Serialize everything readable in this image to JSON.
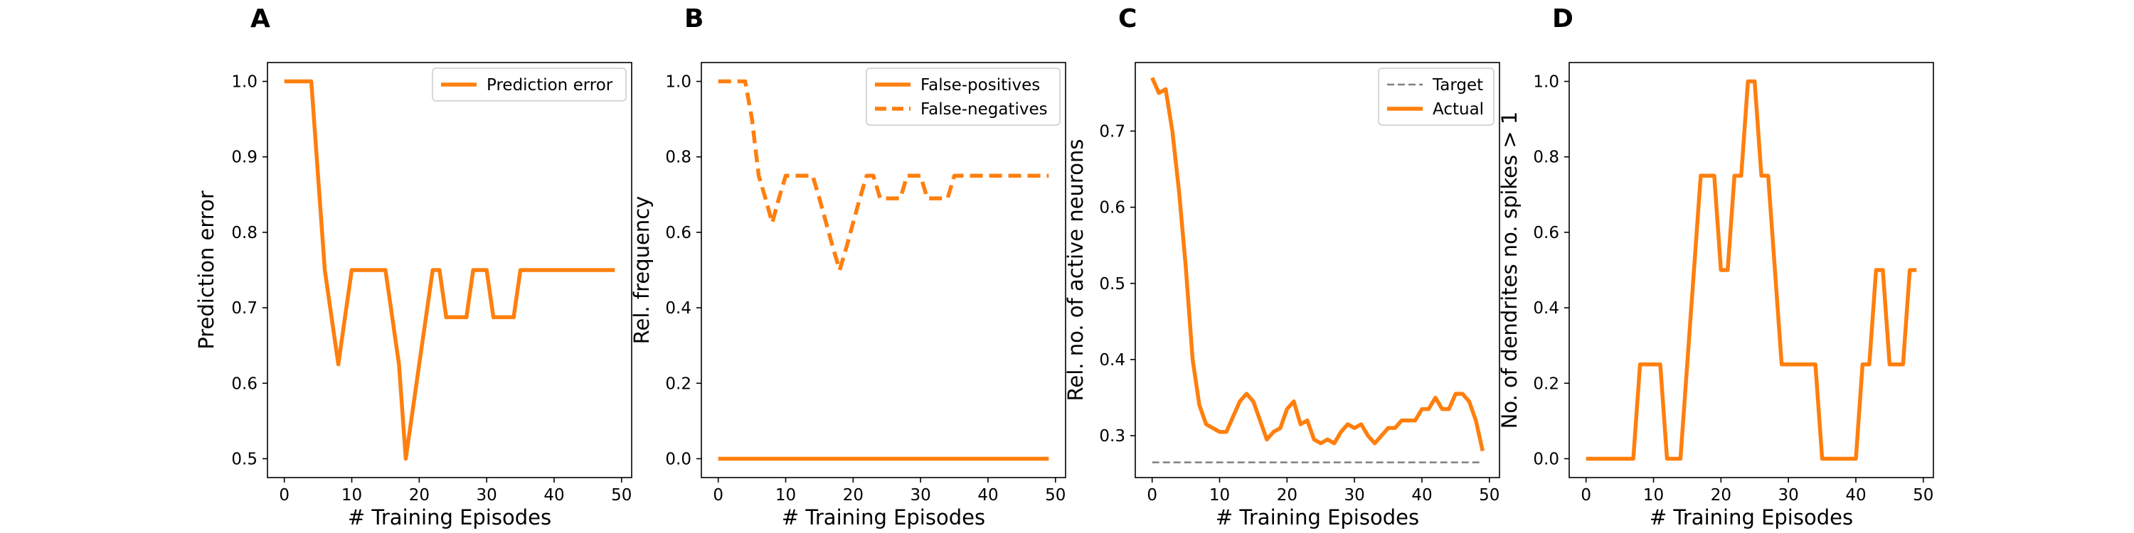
{
  "chart_data": [
    {
      "panel": "A",
      "type": "line",
      "xlabel": "# Training Episodes",
      "ylabel": "Prediction error",
      "xlim": [
        -2.5,
        51.5
      ],
      "ylim": [
        0.475,
        1.025
      ],
      "xticks": [
        0,
        10,
        20,
        30,
        40,
        50
      ],
      "yticks": [
        0.5,
        0.6,
        0.7,
        0.8,
        0.9,
        1.0
      ],
      "ytick_labels": [
        "0.5",
        "0.6",
        "0.7",
        "0.8",
        "0.9",
        "1.0"
      ],
      "legend": "upper right",
      "x": [
        0,
        1,
        2,
        3,
        4,
        5,
        6,
        7,
        8,
        9,
        10,
        11,
        12,
        13,
        14,
        15,
        16,
        17,
        18,
        19,
        20,
        21,
        22,
        23,
        24,
        25,
        26,
        27,
        28,
        29,
        30,
        31,
        32,
        33,
        34,
        35,
        36,
        37,
        38,
        39,
        40,
        41,
        42,
        43,
        44,
        45,
        46,
        47,
        48,
        49
      ],
      "series": [
        {
          "name": "Prediction error",
          "color": "#ff7f0e",
          "style": "solid",
          "values": [
            1.0,
            1.0,
            1.0,
            1.0,
            1.0,
            0.875,
            0.75,
            0.6875,
            0.625,
            0.6875,
            0.75,
            0.75,
            0.75,
            0.75,
            0.75,
            0.75,
            0.6875,
            0.625,
            0.5,
            0.5625,
            0.625,
            0.6875,
            0.75,
            0.75,
            0.6875,
            0.6875,
            0.6875,
            0.6875,
            0.75,
            0.75,
            0.75,
            0.6875,
            0.6875,
            0.6875,
            0.6875,
            0.75,
            0.75,
            0.75,
            0.75,
            0.75,
            0.75,
            0.75,
            0.75,
            0.75,
            0.75,
            0.75,
            0.75,
            0.75,
            0.75,
            0.75
          ]
        }
      ]
    },
    {
      "panel": "B",
      "type": "line",
      "xlabel": "# Training Episodes",
      "ylabel": "Rel. frequency",
      "xlim": [
        -2.5,
        51.5
      ],
      "ylim": [
        -0.05,
        1.05
      ],
      "xticks": [
        0,
        10,
        20,
        30,
        40,
        50
      ],
      "yticks": [
        0.0,
        0.2,
        0.4,
        0.6,
        0.8,
        1.0
      ],
      "ytick_labels": [
        "0.0",
        "0.2",
        "0.4",
        "0.6",
        "0.8",
        "1.0"
      ],
      "legend": "upper right",
      "x": [
        0,
        1,
        2,
        3,
        4,
        5,
        6,
        7,
        8,
        9,
        10,
        11,
        12,
        13,
        14,
        15,
        16,
        17,
        18,
        19,
        20,
        21,
        22,
        23,
        24,
        25,
        26,
        27,
        28,
        29,
        30,
        31,
        32,
        33,
        34,
        35,
        36,
        37,
        38,
        39,
        40,
        41,
        42,
        43,
        44,
        45,
        46,
        47,
        48,
        49
      ],
      "series": [
        {
          "name": "False-positives",
          "color": "#ff7f0e",
          "style": "solid",
          "values": [
            0,
            0,
            0,
            0,
            0,
            0,
            0,
            0,
            0,
            0,
            0,
            0,
            0,
            0,
            0,
            0,
            0,
            0,
            0,
            0,
            0,
            0,
            0,
            0,
            0,
            0,
            0,
            0,
            0,
            0,
            0,
            0,
            0,
            0,
            0,
            0,
            0,
            0,
            0,
            0,
            0,
            0,
            0,
            0,
            0,
            0,
            0,
            0,
            0,
            0
          ]
        },
        {
          "name": "False-negatives",
          "color": "#ff7f0e",
          "style": "dashed",
          "values": [
            1.0,
            1.0,
            1.0,
            1.0,
            1.0,
            0.9,
            0.75,
            0.69,
            0.625,
            0.69,
            0.75,
            0.75,
            0.75,
            0.75,
            0.75,
            0.69,
            0.625,
            0.56,
            0.5,
            0.56,
            0.625,
            0.69,
            0.75,
            0.75,
            0.69,
            0.69,
            0.69,
            0.69,
            0.75,
            0.75,
            0.75,
            0.69,
            0.69,
            0.69,
            0.69,
            0.75,
            0.75,
            0.75,
            0.75,
            0.75,
            0.75,
            0.75,
            0.75,
            0.75,
            0.75,
            0.75,
            0.75,
            0.75,
            0.75,
            0.75
          ]
        }
      ]
    },
    {
      "panel": "C",
      "type": "line",
      "xlabel": "# Training Episodes",
      "ylabel": "Rel. no. of active neurons",
      "xlim": [
        -2.5,
        51.5
      ],
      "ylim": [
        0.245,
        0.79
      ],
      "xticks": [
        0,
        10,
        20,
        30,
        40,
        50
      ],
      "yticks": [
        0.3,
        0.4,
        0.5,
        0.6,
        0.7
      ],
      "ytick_labels": [
        "0.3",
        "0.4",
        "0.5",
        "0.6",
        "0.7"
      ],
      "legend": "upper right",
      "x": [
        0,
        1,
        2,
        3,
        4,
        5,
        6,
        7,
        8,
        9,
        10,
        11,
        12,
        13,
        14,
        15,
        16,
        17,
        18,
        19,
        20,
        21,
        22,
        23,
        24,
        25,
        26,
        27,
        28,
        29,
        30,
        31,
        32,
        33,
        34,
        35,
        36,
        37,
        38,
        39,
        40,
        41,
        42,
        43,
        44,
        45,
        46,
        47,
        48,
        49
      ],
      "series": [
        {
          "name": "Target",
          "color": "#808080",
          "style": "dashed",
          "values": [
            0.265,
            0.265,
            0.265,
            0.265,
            0.265,
            0.265,
            0.265,
            0.265,
            0.265,
            0.265,
            0.265,
            0.265,
            0.265,
            0.265,
            0.265,
            0.265,
            0.265,
            0.265,
            0.265,
            0.265,
            0.265,
            0.265,
            0.265,
            0.265,
            0.265,
            0.265,
            0.265,
            0.265,
            0.265,
            0.265,
            0.265,
            0.265,
            0.265,
            0.265,
            0.265,
            0.265,
            0.265,
            0.265,
            0.265,
            0.265,
            0.265,
            0.265,
            0.265,
            0.265,
            0.265,
            0.265,
            0.265,
            0.265,
            0.265,
            0.265
          ]
        },
        {
          "name": "Actual",
          "color": "#ff7f0e",
          "style": "solid",
          "values": [
            0.77,
            0.75,
            0.755,
            0.7,
            0.62,
            0.52,
            0.4,
            0.34,
            0.315,
            0.31,
            0.305,
            0.305,
            0.325,
            0.345,
            0.355,
            0.345,
            0.32,
            0.295,
            0.305,
            0.31,
            0.335,
            0.345,
            0.315,
            0.32,
            0.295,
            0.29,
            0.295,
            0.29,
            0.305,
            0.315,
            0.31,
            0.315,
            0.3,
            0.29,
            0.3,
            0.31,
            0.31,
            0.32,
            0.32,
            0.32,
            0.335,
            0.335,
            0.35,
            0.335,
            0.335,
            0.355,
            0.355,
            0.345,
            0.32,
            0.28
          ]
        }
      ]
    },
    {
      "panel": "D",
      "type": "line",
      "xlabel": "# Training Episodes",
      "ylabel": "No. of dendrites no. spikes > 1",
      "xlim": [
        -2.5,
        51.5
      ],
      "ylim": [
        -0.05,
        1.05
      ],
      "xticks": [
        0,
        10,
        20,
        30,
        40,
        50
      ],
      "yticks": [
        0.0,
        0.2,
        0.4,
        0.6,
        0.8,
        1.0
      ],
      "ytick_labels": [
        "0.0",
        "0.2",
        "0.4",
        "0.6",
        "0.8",
        "1.0"
      ],
      "x": [
        0,
        1,
        2,
        3,
        4,
        5,
        6,
        7,
        8,
        9,
        10,
        11,
        12,
        13,
        14,
        15,
        16,
        17,
        18,
        19,
        20,
        21,
        22,
        23,
        24,
        25,
        26,
        27,
        28,
        29,
        30,
        31,
        32,
        33,
        34,
        35,
        36,
        37,
        38,
        39,
        40,
        41,
        42,
        43,
        44,
        45,
        46,
        47,
        48,
        49
      ],
      "series": [
        {
          "color": "#ff7f0e",
          "style": "solid",
          "values": [
            0,
            0,
            0,
            0,
            0,
            0,
            0,
            0,
            0.25,
            0.25,
            0.25,
            0.25,
            0,
            0,
            0,
            0.25,
            0.5,
            0.75,
            0.75,
            0.75,
            0.5,
            0.5,
            0.75,
            0.75,
            1.0,
            1.0,
            0.75,
            0.75,
            0.5,
            0.25,
            0.25,
            0.25,
            0.25,
            0.25,
            0.25,
            0,
            0,
            0,
            0,
            0,
            0,
            0.25,
            0.25,
            0.5,
            0.5,
            0.25,
            0.25,
            0.25,
            0.5,
            0.5
          ]
        }
      ]
    }
  ]
}
